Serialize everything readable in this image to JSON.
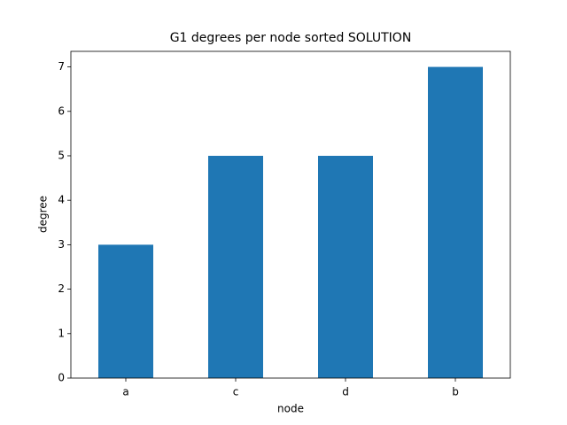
{
  "chart_data": {
    "type": "bar",
    "title": "G1 degrees per node sorted SOLUTION",
    "x_label": "node",
    "y_label": "degree",
    "categories": [
      "a",
      "c",
      "d",
      "b"
    ],
    "values": [
      3,
      5,
      5,
      7
    ],
    "color": "#1f77b4",
    "ylim": [
      0,
      7.35
    ],
    "yticks": [
      0,
      1,
      2,
      3,
      4,
      5,
      6,
      7
    ],
    "grid": false
  }
}
